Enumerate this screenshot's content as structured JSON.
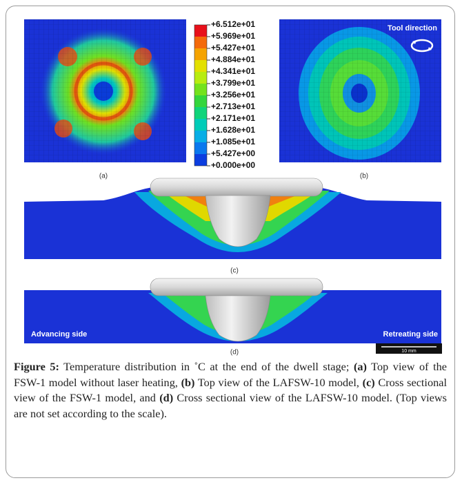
{
  "figure": {
    "legend": {
      "labels": [
        "+6.512e+01",
        "+5.969e+01",
        "+5.427e+01",
        "+4.884e+01",
        "+4.341e+01",
        "+3.799e+01",
        "+3.256e+01",
        "+2.713e+01",
        "+2.171e+01",
        "+1.628e+01",
        "+1.085e+01",
        "+5.427e+00",
        "+0.000e+00"
      ],
      "colors": [
        "#e8101a",
        "#f46a0a",
        "#f5a300",
        "#e3e000",
        "#b8ec10",
        "#74e21c",
        "#34d63c",
        "#10d47a",
        "#00ccb8",
        "#08aee6",
        "#0a78ee",
        "#0c3ee0"
      ]
    },
    "panel_labels": [
      "(a)",
      "(b)",
      "(c)",
      "(d)"
    ],
    "annotations": {
      "tool_direction": "Tool direction",
      "advancing": "Advancing side",
      "retreating": "Retreating side",
      "scale_bar": "10 mm"
    },
    "caption": [
      {
        "text": "Figure 5:",
        "bold": true
      },
      {
        "text": " Temperature distribution in ˚C at the end of the dwell stage; ",
        "bold": false
      },
      {
        "text": "(a)",
        "bold": true
      },
      {
        "text": " Top view of the FSW-1 model without laser heating, ",
        "bold": false
      },
      {
        "text": "(b)",
        "bold": true
      },
      {
        "text": " Top view of the LAFSW-10 model, ",
        "bold": false
      },
      {
        "text": "(c)",
        "bold": true
      },
      {
        "text": " Cross sectional view of the FSW-1 model, and ",
        "bold": false
      },
      {
        "text": "(d)",
        "bold": true
      },
      {
        "text": " Cross sectional view of the LAFSW-10 model. (Top views are not set according to the scale).",
        "bold": false
      }
    ]
  }
}
